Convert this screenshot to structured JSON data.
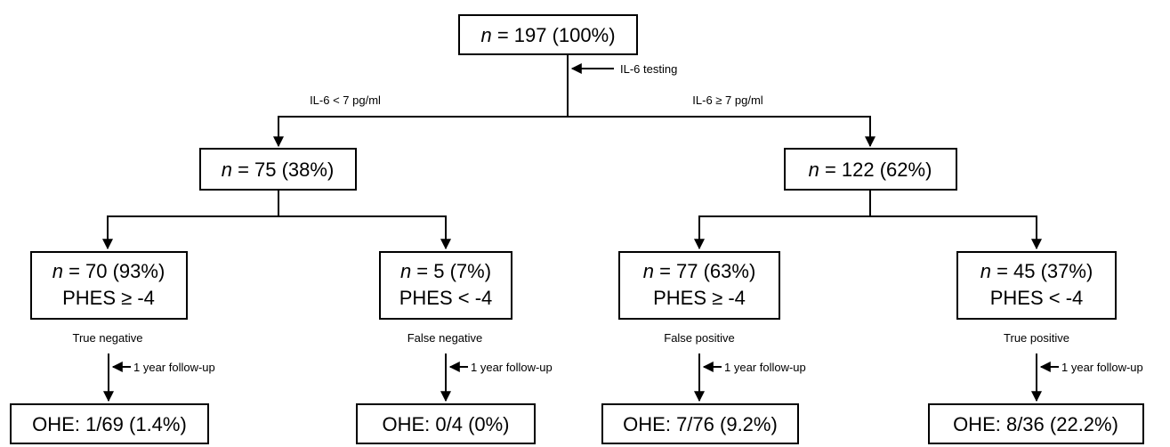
{
  "root": {
    "n_label": "n",
    "value": " = 197 (100%)",
    "annotation": "IL-6 testing"
  },
  "branches": {
    "left": "IL-6 < 7 pg/ml",
    "right": "IL-6 ≥ 7 pg/ml"
  },
  "level1": [
    {
      "n_label": "n",
      "value": " = 75 (38%)"
    },
    {
      "n_label": "n",
      "value": " = 122 (62%)"
    }
  ],
  "level2": [
    {
      "n_label": "n",
      "value": " = 70 (93%)",
      "phes": "PHES ≥ -4",
      "result": "True negative",
      "followup": "1 year follow-up",
      "outcome": "OHE: 1/69 (1.4%)"
    },
    {
      "n_label": "n",
      "value": " = 5 (7%)",
      "phes": "PHES < -4",
      "result": "False negative",
      "followup": "1 year follow-up",
      "outcome": "OHE: 0/4 (0%)"
    },
    {
      "n_label": "n",
      "value": " = 77 (63%)",
      "phes": "PHES ≥ -4",
      "result": "False positive",
      "followup": "1 year follow-up",
      "outcome": "OHE: 7/76 (9.2%)"
    },
    {
      "n_label": "n",
      "value": " = 45 (37%)",
      "phes": "PHES < -4",
      "result": "True positive",
      "followup": "1 year follow-up",
      "outcome": "OHE: 8/36 (22.2%)"
    }
  ]
}
